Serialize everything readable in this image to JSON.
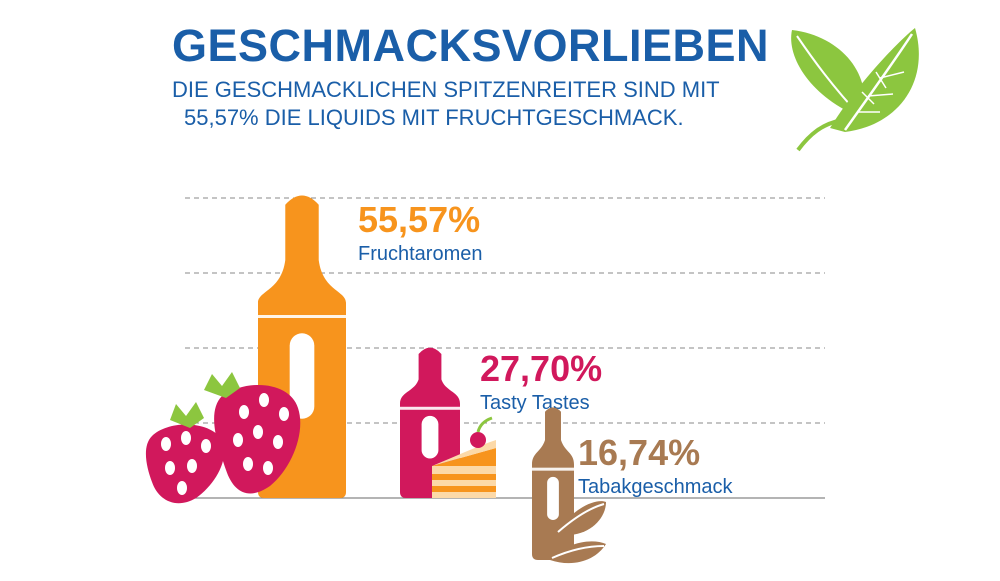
{
  "title": "GESCHMACKSVORLIEBEN",
  "subtitle_line1": "DIE GESCHMACKLICHEN SPITZENREITER SIND MIT",
  "subtitle_line2": "55,57% DIE LIQUIDS MIT FRUCHTGESCHMACK.",
  "colors": {
    "title": "#1a5ea8",
    "fruit": "#f7941d",
    "tasty": "#d1185c",
    "tobacco": "#a87a52",
    "leaf": "#8cc63f"
  },
  "chart_data": {
    "type": "bar",
    "categories": [
      "Fruchtaromen",
      "Tasty Tastes",
      "Tabakgeschmack"
    ],
    "values": [
      55.57,
      27.7,
      16.74
    ],
    "value_labels": [
      "55,57%",
      "27,70%",
      "16,74%"
    ],
    "grid": true,
    "legend": "none"
  }
}
